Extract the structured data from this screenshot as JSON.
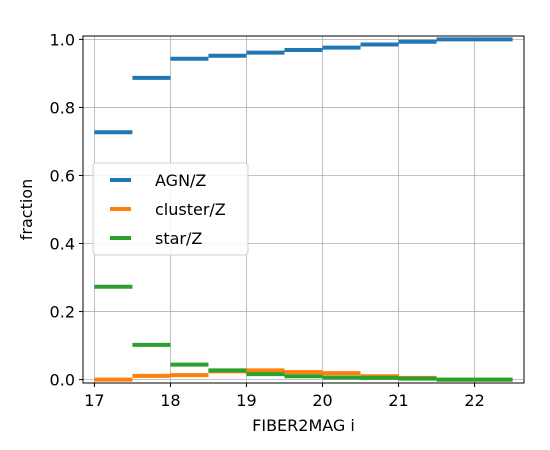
{
  "chart_data": {
    "type": "line",
    "xlabel": "FIBER2MAG i",
    "ylabel": "fraction",
    "xlim": [
      16.85,
      22.65
    ],
    "ylim": [
      -0.01,
      1.01
    ],
    "xticks": [
      17,
      18,
      19,
      20,
      21,
      22
    ],
    "yticks": [
      0.0,
      0.2,
      0.4,
      0.6,
      0.8,
      1.0
    ],
    "xtick_labels": [
      "17",
      "18",
      "19",
      "20",
      "21",
      "22"
    ],
    "ytick_labels": [
      "0.0",
      "0.2",
      "0.4",
      "0.6",
      "0.8",
      "1.0"
    ],
    "grid": true,
    "legend_position": "center-left",
    "bin_edges": [
      17.0,
      17.5,
      18.0,
      18.5,
      19.0,
      19.5,
      20.0,
      20.5,
      21.0,
      21.5,
      22.0,
      22.5
    ],
    "series": [
      {
        "name": "AGN/Z",
        "color": "#1f77b4",
        "values": [
          0.727,
          0.887,
          0.943,
          0.952,
          0.961,
          0.969,
          0.976,
          0.985,
          0.993,
          1.0,
          1.0
        ]
      },
      {
        "name": "cluster/Z",
        "color": "#ff7f0e",
        "values": [
          0.0,
          0.011,
          0.013,
          0.024,
          0.027,
          0.022,
          0.019,
          0.01,
          0.005,
          0.0,
          0.0
        ]
      },
      {
        "name": "star/Z",
        "color": "#2ca02c",
        "values": [
          0.273,
          0.102,
          0.044,
          0.027,
          0.016,
          0.01,
          0.006,
          0.005,
          0.003,
          0.0,
          0.0
        ]
      }
    ]
  }
}
